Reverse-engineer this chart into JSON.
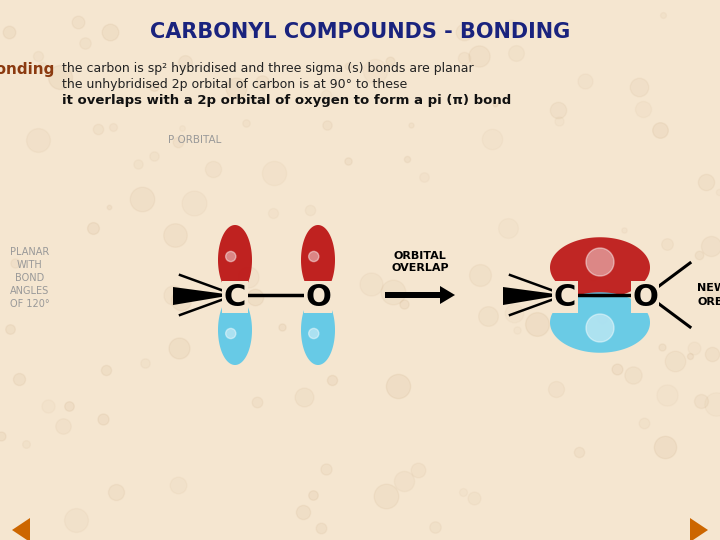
{
  "title": "CARBONYL COMPOUNDS - BONDING",
  "title_color": "#1a237e",
  "title_fontsize": 15,
  "background_color": "#f5e6d0",
  "bonding_label": "Bonding",
  "bonding_label_color": "#8B3A10",
  "text_line1": "the carbon is sp² hybridised and three sigma (s) bonds are planar",
  "text_line2": "the unhybridised 2p orbital of carbon is at 90° to these",
  "text_line3": "it overlaps with a 2p orbital of oxygen to form a pi (π) bond",
  "planar_text": "PLANAR\nWITH\nBOND\nANGLES\nOF 120°",
  "p_orbital_text": "P ORBITAL",
  "orbital_overlap_text": "ORBITAL\nOVERLAP",
  "new_orbital_text": "NEW\nORBITAL",
  "red_color": "#bb1111",
  "blue_color": "#5bc8e8",
  "dark_color": "#1a1a1a",
  "text_color": "#333333",
  "gray_text_color": "#999999",
  "nav_arrow_color": "#cc6600"
}
